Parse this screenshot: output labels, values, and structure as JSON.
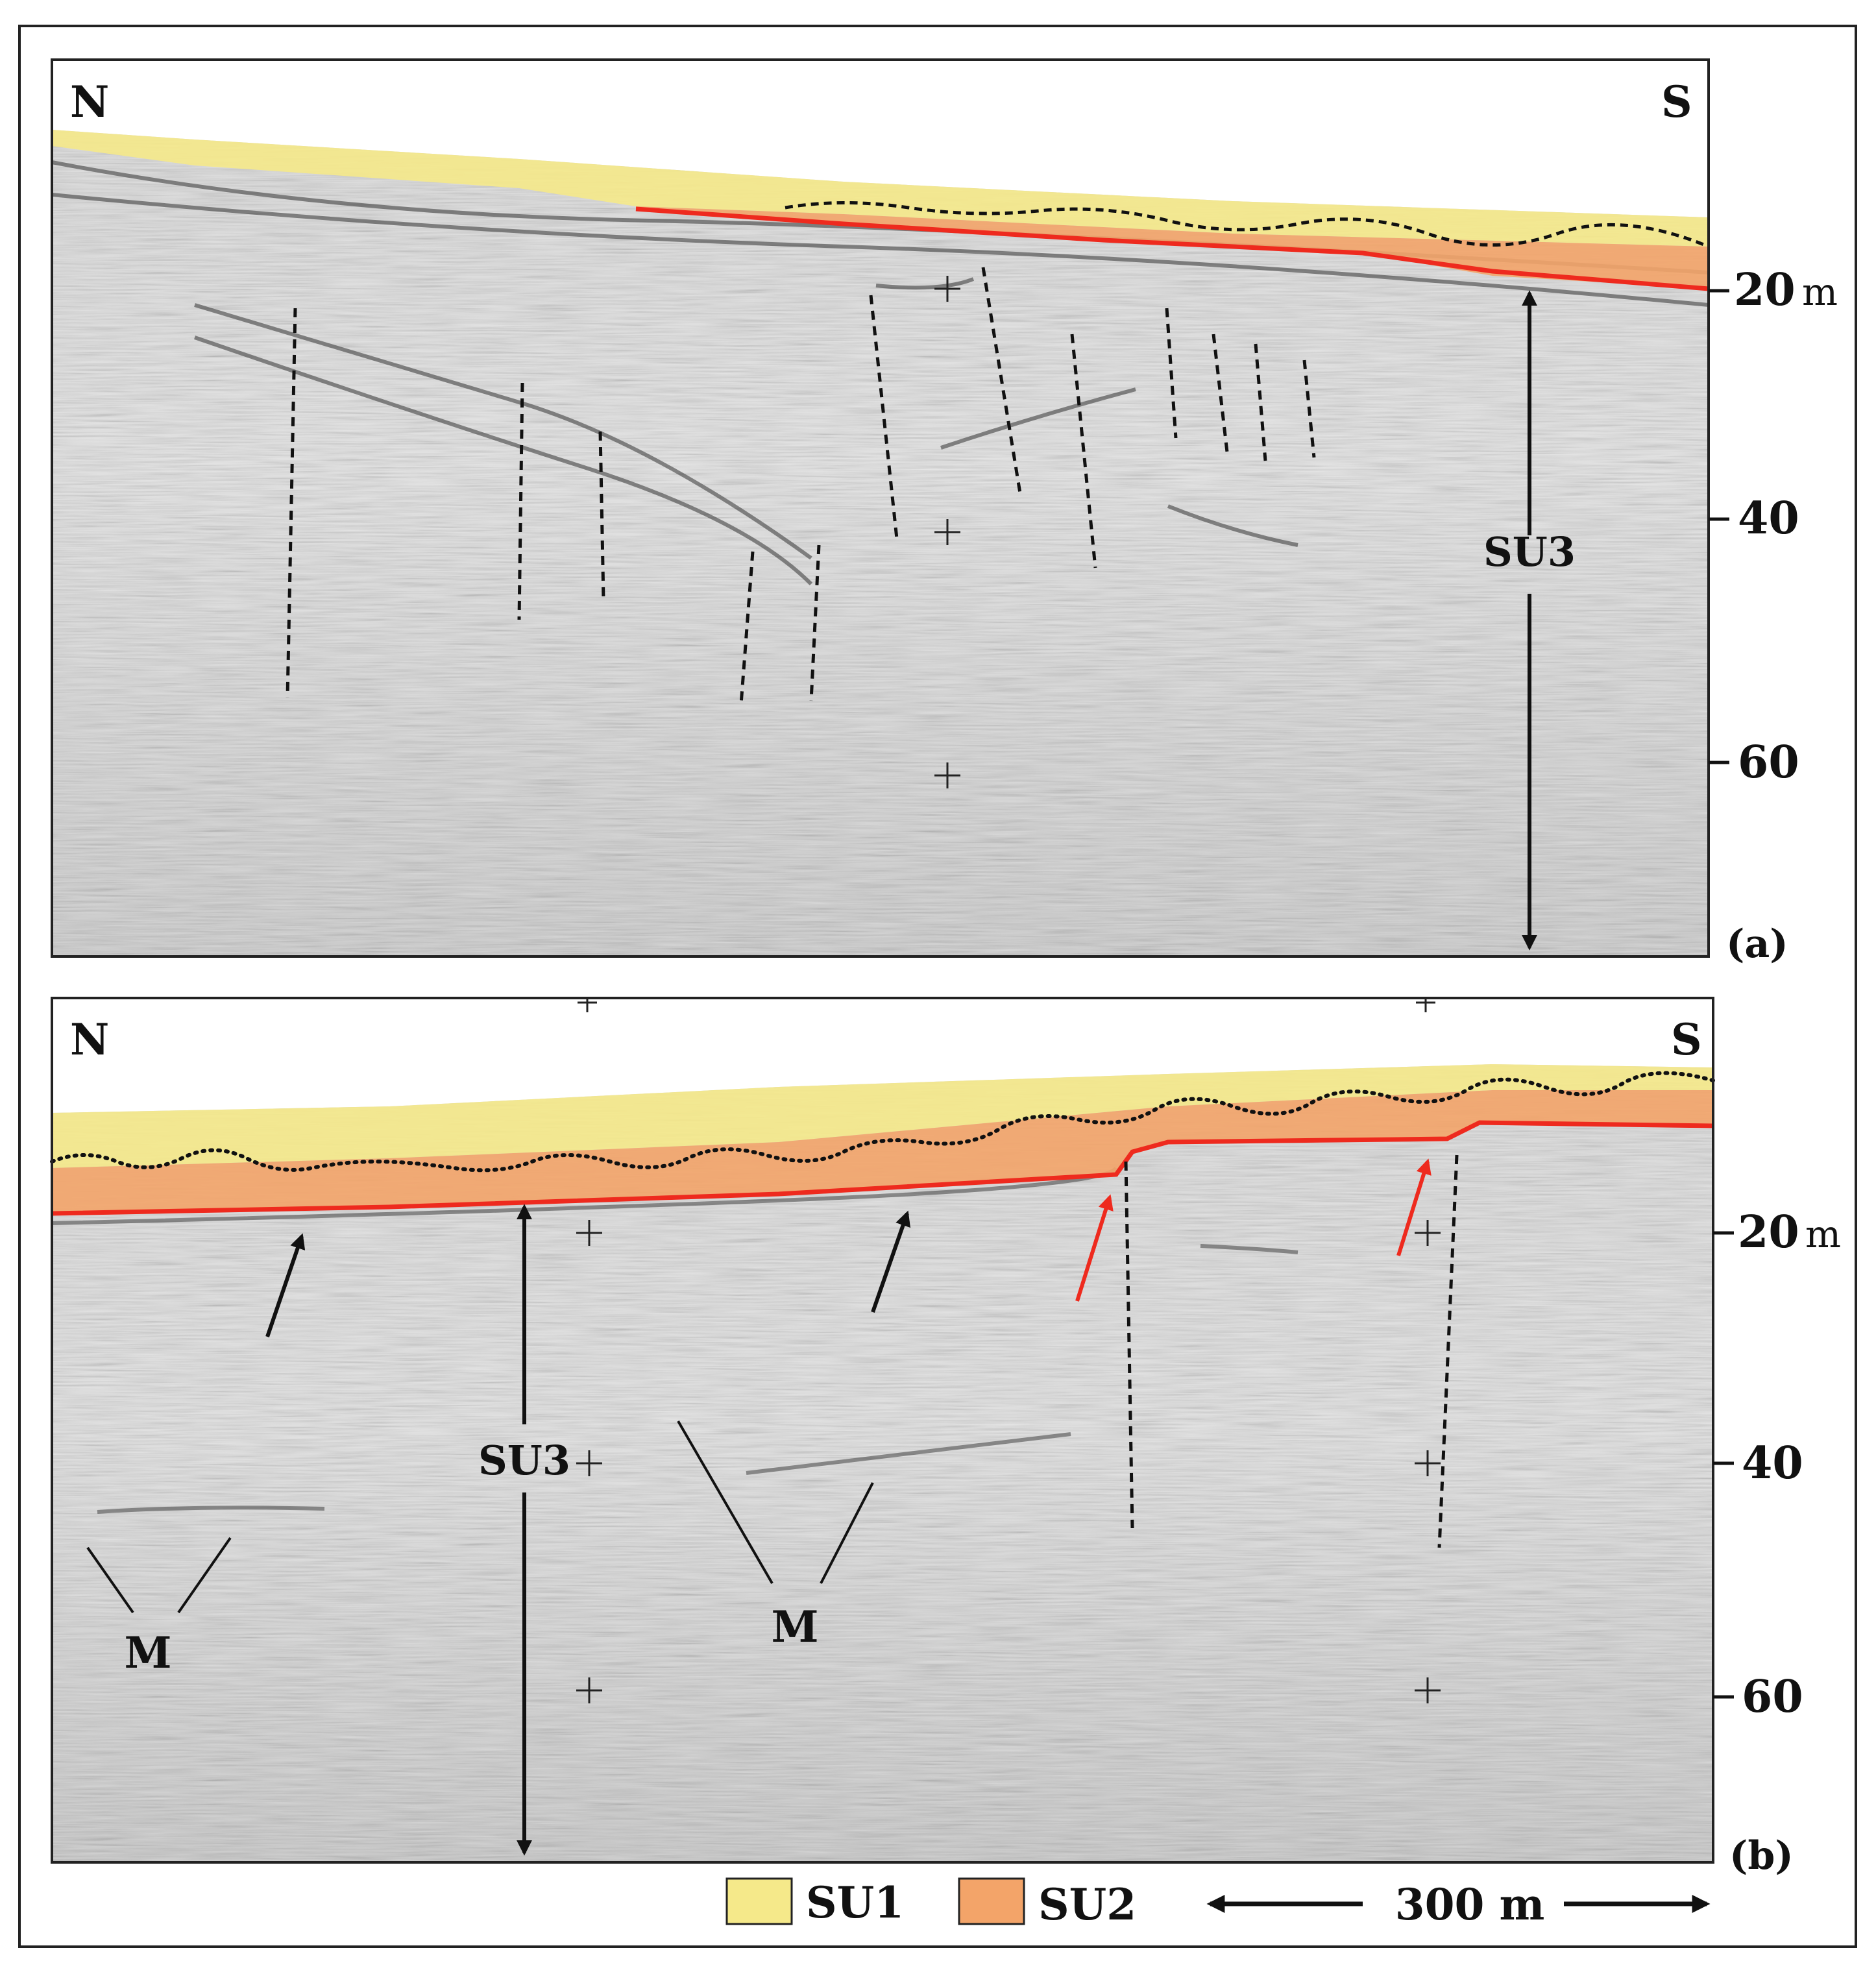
{
  "figure": {
    "panel_a": {
      "label": "(a)",
      "north": "N",
      "south": "S",
      "unit_label": "SU3",
      "depth_unit": "m",
      "depth_ticks": [
        "20",
        "40",
        "60"
      ]
    },
    "panel_b": {
      "label": "(b)",
      "north": "N",
      "south": "S",
      "unit_label": "SU3",
      "depth_unit": "m",
      "depth_ticks": [
        "20",
        "40",
        "60"
      ],
      "markers": [
        "M",
        "M"
      ]
    },
    "legend": {
      "su1_label": "SU1",
      "su2_label": "SU2",
      "scale_label": "300 m",
      "su1_color": "#f5e98a",
      "su2_color": "#f3a469"
    },
    "colors": {
      "reflector": "#ee2a1e",
      "arrow_red": "#ee2a1e",
      "seismic_bg": "#c9c9c9"
    }
  }
}
